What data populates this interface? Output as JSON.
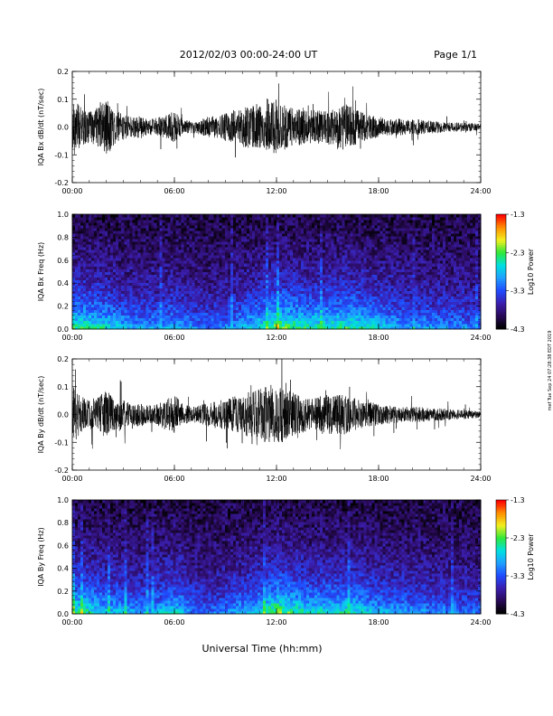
{
  "header": {
    "title": "2012/02/03  00:00-24:00 UT",
    "page": "Page 1/1"
  },
  "xaxis_title": "Universal Time (hh:mm)",
  "side_note": "mef Tue Sep 24 07:28:38 EDT 2019",
  "colors": {
    "trace": "#000000",
    "colormap": [
      "#000000",
      "#2a0a5a",
      "#3a1fb0",
      "#1f4cff",
      "#1f9fff",
      "#00e0e0",
      "#2ee83a",
      "#f0f020",
      "#ff9000",
      "#ff0000"
    ]
  },
  "chart_data": [
    {
      "id": "bx-dbdt",
      "type": "line",
      "ylabel": "IQA Bx dB/dt (nT/sec)",
      "ylim": [
        -0.2,
        0.2
      ],
      "yticks": [
        "0.2",
        "0.1",
        "0.0",
        "-0.1",
        "-0.2"
      ],
      "ytick_values": [
        0.2,
        0.1,
        0.0,
        -0.1,
        -0.2
      ],
      "xlim": [
        0,
        24
      ],
      "xticks": [
        "00:00",
        "06:00",
        "12:00",
        "18:00",
        "24:00"
      ],
      "xtick_values": [
        0,
        6,
        12,
        18,
        24
      ],
      "envelope_hours": [
        0,
        0.5,
        1,
        1.5,
        2,
        2.5,
        3,
        3.5,
        4,
        4.5,
        5,
        5.5,
        6,
        6.5,
        7,
        7.5,
        8,
        8.5,
        9,
        9.5,
        10,
        10.5,
        11,
        11.5,
        12,
        12.5,
        13,
        13.5,
        14,
        14.5,
        15,
        15.5,
        16,
        16.5,
        17,
        17.5,
        18,
        18.5,
        19,
        19.5,
        20,
        20.5,
        21,
        21.5,
        22,
        22.5,
        23,
        23.5,
        24
      ],
      "envelope_amplitude": [
        0.2,
        0.13,
        0.1,
        0.13,
        0.18,
        0.12,
        0.08,
        0.07,
        0.07,
        0.05,
        0.06,
        0.08,
        0.1,
        0.05,
        0.04,
        0.05,
        0.07,
        0.07,
        0.09,
        0.1,
        0.13,
        0.14,
        0.14,
        0.16,
        0.18,
        0.15,
        0.12,
        0.12,
        0.11,
        0.11,
        0.12,
        0.13,
        0.15,
        0.13,
        0.1,
        0.08,
        0.07,
        0.05,
        0.06,
        0.05,
        0.05,
        0.05,
        0.04,
        0.04,
        0.03,
        0.03,
        0.03,
        0.025,
        0.02
      ]
    },
    {
      "id": "bx-spectrogram",
      "type": "heatmap",
      "ylabel": "IQA Bx Freq (Hz)",
      "ylim": [
        0.0,
        1.0
      ],
      "yticks": [
        "1.0",
        "0.8",
        "0.6",
        "0.4",
        "0.2",
        "0.0"
      ],
      "ytick_values": [
        1.0,
        0.8,
        0.6,
        0.4,
        0.2,
        0.0
      ],
      "xlim": [
        0,
        24
      ],
      "xticks": [
        "00:00",
        "06:00",
        "12:00",
        "18:00",
        "24:00"
      ],
      "xtick_values": [
        0,
        6,
        12,
        18,
        24
      ],
      "colorbar_label": "Log10 Power",
      "colorbar_ticks": [
        "-1.3",
        "-2.3",
        "-3.3",
        "-4.3"
      ],
      "colorbar_values": [
        -1.3,
        -2.3,
        -3.3,
        -4.3
      ],
      "zlim": [
        -4.3,
        -1.3
      ],
      "activity_hours": [
        0,
        1,
        2,
        3,
        4,
        5,
        6,
        7,
        8,
        9,
        10,
        11,
        12,
        13,
        14,
        15,
        16,
        17,
        18,
        19,
        20,
        21,
        22,
        23,
        24
      ],
      "activity_level": [
        0.75,
        0.7,
        0.65,
        0.55,
        0.5,
        0.5,
        0.55,
        0.45,
        0.4,
        0.45,
        0.55,
        0.65,
        0.85,
        0.75,
        0.7,
        0.7,
        0.75,
        0.7,
        0.6,
        0.55,
        0.5,
        0.5,
        0.45,
        0.45,
        0.4
      ]
    },
    {
      "id": "by-dbdt",
      "type": "line",
      "ylabel": "IQA By dB/dt (nT/sec)",
      "ylim": [
        -0.2,
        0.2
      ],
      "yticks": [
        "0.2",
        "0.1",
        "0.0",
        "-0.1",
        "-0.2"
      ],
      "ytick_values": [
        0.2,
        0.1,
        0.0,
        -0.1,
        -0.2
      ],
      "xlim": [
        0,
        24
      ],
      "xticks": [
        "00:00",
        "06:00",
        "12:00",
        "18:00",
        "24:00"
      ],
      "xtick_values": [
        0,
        6,
        12,
        18,
        24
      ],
      "envelope_hours": [
        0,
        0.5,
        1,
        1.5,
        2,
        2.5,
        3,
        3.5,
        4,
        4.5,
        5,
        5.5,
        6,
        6.5,
        7,
        7.5,
        8,
        8.5,
        9,
        9.5,
        10,
        10.5,
        11,
        11.5,
        12,
        12.5,
        13,
        13.5,
        14,
        14.5,
        15,
        15.5,
        16,
        16.5,
        17,
        17.5,
        18,
        18.5,
        19,
        19.5,
        20,
        20.5,
        21,
        21.5,
        22,
        22.5,
        23,
        23.5,
        24
      ],
      "envelope_amplitude": [
        0.2,
        0.12,
        0.09,
        0.12,
        0.16,
        0.1,
        0.1,
        0.07,
        0.08,
        0.06,
        0.07,
        0.1,
        0.13,
        0.07,
        0.05,
        0.06,
        0.08,
        0.09,
        0.1,
        0.12,
        0.14,
        0.15,
        0.17,
        0.19,
        0.2,
        0.18,
        0.14,
        0.12,
        0.11,
        0.12,
        0.14,
        0.13,
        0.13,
        0.11,
        0.09,
        0.08,
        0.07,
        0.06,
        0.06,
        0.05,
        0.05,
        0.05,
        0.04,
        0.04,
        0.04,
        0.03,
        0.03,
        0.025,
        0.02
      ]
    },
    {
      "id": "by-spectrogram",
      "type": "heatmap",
      "ylabel": "IQA By Freq (Hz)",
      "ylim": [
        0.0,
        1.0
      ],
      "yticks": [
        "1.0",
        "0.8",
        "0.6",
        "0.4",
        "0.2",
        "0.0"
      ],
      "ytick_values": [
        1.0,
        0.8,
        0.6,
        0.4,
        0.2,
        0.0
      ],
      "xlim": [
        0,
        24
      ],
      "xticks": [
        "00:00",
        "06:00",
        "12:00",
        "18:00",
        "24:00"
      ],
      "xtick_values": [
        0,
        6,
        12,
        18,
        24
      ],
      "colorbar_label": "Log10 Power",
      "colorbar_ticks": [
        "-1.3",
        "-2.3",
        "-3.3",
        "-4.3"
      ],
      "colorbar_values": [
        -1.3,
        -2.3,
        -3.3,
        -4.3
      ],
      "zlim": [
        -4.3,
        -1.3
      ],
      "activity_hours": [
        0,
        1,
        2,
        3,
        4,
        5,
        6,
        7,
        8,
        9,
        10,
        11,
        12,
        13,
        14,
        15,
        16,
        17,
        18,
        19,
        20,
        21,
        22,
        23,
        24
      ],
      "activity_level": [
        0.75,
        0.7,
        0.6,
        0.55,
        0.5,
        0.55,
        0.65,
        0.45,
        0.4,
        0.45,
        0.55,
        0.65,
        0.85,
        0.75,
        0.65,
        0.65,
        0.7,
        0.65,
        0.55,
        0.5,
        0.5,
        0.45,
        0.45,
        0.4,
        0.4
      ]
    }
  ]
}
